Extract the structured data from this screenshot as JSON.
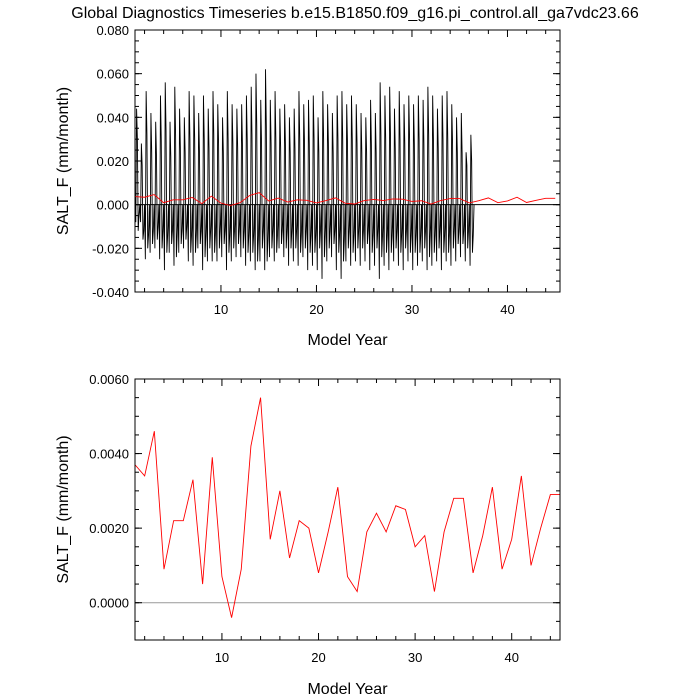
{
  "title": "Global Diagnostics Timeseries b.e15.B1850.f09_g16.pi_control.all_ga7vdc23.66",
  "chart_data": [
    {
      "type": "line",
      "xlabel": "Model Year",
      "ylabel": "SALT_F (mm/month)",
      "xlim": [
        1,
        45.5
      ],
      "ylim": [
        -0.04,
        0.08
      ],
      "xticks": [
        10,
        20,
        30,
        40
      ],
      "xtick_labels": [
        "10",
        "20",
        "30",
        "40"
      ],
      "yticks": [
        -0.04,
        -0.02,
        0,
        0.02,
        0.04,
        0.06,
        0.08
      ],
      "ytick_labels": [
        "-0.040",
        "-0.020",
        "0.000",
        "0.020",
        "0.040",
        "0.060",
        "0.080"
      ],
      "reference_line": 0,
      "series": [
        {
          "color": "#000000",
          "x_start": 1.0,
          "x_step": 0.0833333,
          "values": [
            0.0,
            -0.008,
            0.044,
            0.03,
            -0.012,
            -0.005,
            0.0,
            -0.008,
            0.028,
            0.018,
            -0.016,
            -0.012,
            0.0,
            -0.025,
            0.052,
            0.032,
            -0.02,
            -0.014,
            0.0,
            -0.022,
            0.042,
            0.024,
            -0.018,
            -0.012,
            0.0,
            -0.02,
            0.038,
            0.022,
            -0.016,
            -0.01,
            0.0,
            -0.025,
            0.05,
            0.03,
            -0.02,
            -0.012,
            0.0,
            -0.03,
            0.056,
            0.034,
            -0.022,
            -0.014,
            0.0,
            -0.022,
            0.038,
            0.022,
            -0.018,
            -0.012,
            0.0,
            -0.028,
            0.054,
            0.032,
            -0.024,
            -0.014,
            0.0,
            -0.022,
            0.044,
            0.026,
            -0.018,
            -0.012,
            0.0,
            -0.02,
            0.04,
            0.024,
            -0.016,
            -0.01,
            0.0,
            -0.026,
            0.052,
            0.03,
            -0.022,
            -0.014,
            0.0,
            -0.028,
            0.05,
            0.03,
            -0.022,
            -0.014,
            0.0,
            -0.02,
            0.042,
            0.024,
            -0.018,
            -0.012,
            0.0,
            -0.03,
            0.05,
            0.03,
            -0.024,
            -0.014,
            0.0,
            -0.026,
            0.044,
            0.026,
            -0.02,
            -0.012,
            0.0,
            -0.026,
            0.052,
            0.032,
            -0.022,
            -0.014,
            0.0,
            -0.026,
            0.046,
            0.028,
            -0.02,
            -0.012,
            0.0,
            -0.024,
            0.04,
            0.024,
            -0.018,
            -0.012,
            0.0,
            -0.03,
            0.052,
            0.03,
            -0.022,
            -0.014,
            0.0,
            -0.026,
            0.046,
            0.028,
            -0.02,
            -0.012,
            0.0,
            -0.024,
            0.044,
            0.026,
            -0.018,
            -0.012,
            0.0,
            -0.024,
            0.046,
            0.028,
            -0.02,
            -0.012,
            0.0,
            -0.028,
            0.05,
            0.03,
            -0.022,
            -0.014,
            0.0,
            -0.026,
            0.054,
            0.032,
            -0.022,
            -0.014,
            0.0,
            -0.03,
            0.06,
            0.036,
            -0.026,
            -0.016,
            0.0,
            -0.026,
            0.048,
            0.028,
            -0.02,
            -0.012,
            0.0,
            -0.03,
            0.062,
            0.036,
            -0.026,
            -0.016,
            0.0,
            -0.024,
            0.048,
            0.028,
            -0.02,
            -0.012,
            0.0,
            -0.026,
            0.052,
            0.03,
            -0.022,
            -0.014,
            0.0,
            -0.02,
            0.044,
            0.026,
            -0.018,
            -0.012,
            0.0,
            -0.024,
            0.046,
            0.028,
            -0.02,
            -0.012,
            0.0,
            -0.028,
            0.04,
            0.024,
            -0.02,
            -0.012,
            0.0,
            -0.026,
            0.044,
            0.026,
            -0.02,
            -0.012,
            0.0,
            -0.028,
            0.052,
            0.03,
            -0.022,
            -0.014,
            0.0,
            -0.024,
            0.046,
            0.028,
            -0.02,
            -0.012,
            0.0,
            -0.03,
            0.048,
            0.028,
            -0.022,
            -0.014,
            0.0,
            -0.028,
            0.05,
            0.03,
            -0.022,
            -0.014,
            0.0,
            -0.03,
            0.04,
            0.024,
            -0.02,
            -0.012,
            0.0,
            -0.034,
            0.052,
            0.03,
            -0.024,
            -0.014,
            0.0,
            -0.026,
            0.046,
            0.028,
            -0.02,
            -0.012,
            0.0,
            -0.024,
            0.042,
            0.024,
            -0.018,
            -0.012,
            0.0,
            -0.03,
            0.05,
            0.03,
            -0.022,
            -0.014,
            0.0,
            -0.034,
            0.052,
            0.03,
            -0.026,
            -0.016,
            0.0,
            -0.026,
            0.046,
            0.028,
            -0.02,
            -0.012,
            0.0,
            -0.028,
            0.05,
            0.03,
            -0.022,
            -0.014,
            0.0,
            -0.026,
            0.046,
            0.028,
            -0.02,
            -0.012,
            0.0,
            -0.028,
            0.042,
            0.024,
            -0.02,
            -0.012,
            0.0,
            -0.026,
            0.04,
            0.024,
            -0.018,
            -0.012,
            0.0,
            -0.03,
            0.048,
            0.028,
            -0.022,
            -0.014,
            0.0,
            -0.028,
            0.042,
            0.024,
            -0.02,
            -0.012,
            0.0,
            -0.034,
            0.056,
            0.032,
            -0.024,
            -0.014,
            0.0,
            -0.028,
            0.05,
            0.03,
            -0.022,
            -0.014,
            0.0,
            -0.03,
            0.054,
            0.032,
            -0.022,
            -0.014,
            0.0,
            -0.026,
            0.044,
            0.026,
            -0.02,
            -0.012,
            0.0,
            -0.028,
            0.052,
            0.03,
            -0.022,
            -0.014,
            0.0,
            -0.03,
            0.046,
            0.028,
            -0.02,
            -0.012,
            0.0,
            -0.026,
            0.05,
            0.03,
            -0.022,
            -0.014,
            0.0,
            -0.03,
            0.046,
            0.028,
            -0.022,
            -0.014,
            0.0,
            -0.028,
            0.05,
            0.03,
            -0.022,
            -0.014,
            0.0,
            -0.026,
            0.048,
            0.028,
            -0.02,
            -0.012,
            0.0,
            -0.03,
            0.054,
            0.032,
            -0.024,
            -0.014,
            0.0,
            -0.028,
            0.05,
            0.03,
            -0.022,
            -0.014,
            0.0,
            -0.026,
            0.044,
            0.026,
            -0.02,
            -0.012,
            0.0,
            -0.03,
            0.05,
            0.03,
            -0.022,
            -0.014,
            0.0,
            -0.026,
            0.052,
            0.03,
            -0.022,
            -0.014,
            0.0,
            -0.028,
            0.046,
            0.028,
            -0.02,
            -0.012,
            0.0,
            -0.026,
            0.04,
            0.024,
            -0.018,
            -0.012,
            0.0,
            -0.024,
            0.042,
            0.024,
            -0.018,
            -0.012,
            0.0,
            -0.026,
            0.024,
            0.018,
            -0.02,
            -0.012,
            0.0,
            -0.028,
            0.032,
            0.02,
            -0.022,
            -0.014,
            0.0
          ]
        },
        {
          "color": "#ff0000",
          "x": [
            1,
            2,
            3,
            4,
            5,
            6,
            7,
            8,
            9,
            10,
            11,
            12,
            13,
            14,
            15,
            16,
            17,
            18,
            19,
            20,
            21,
            22,
            23,
            24,
            25,
            26,
            27,
            28,
            29,
            30,
            31,
            32,
            33,
            34,
            35,
            36,
            37,
            38,
            39,
            40,
            41,
            42,
            43,
            44,
            45
          ],
          "values": [
            0.0037,
            0.0034,
            0.0046,
            0.0009,
            0.0022,
            0.0022,
            0.0033,
            0.0005,
            0.0039,
            0.0007,
            -0.0004,
            0.0009,
            0.0042,
            0.0055,
            0.0017,
            0.003,
            0.0012,
            0.0022,
            0.002,
            0.0008,
            0.0019,
            0.0031,
            0.0007,
            0.0003,
            0.0019,
            0.0024,
            0.0019,
            0.0026,
            0.0025,
            0.0015,
            0.0018,
            0.0003,
            0.0019,
            0.0028,
            0.0028,
            0.0008,
            0.0018,
            0.0031,
            0.0009,
            0.0017,
            0.0034,
            0.001,
            0.002,
            0.0029,
            0.0029
          ]
        }
      ]
    },
    {
      "type": "line",
      "xlabel": "Model Year",
      "ylabel": "SALT_F (mm/month)",
      "xlim": [
        1,
        45
      ],
      "ylim": [
        -0.001,
        0.006
      ],
      "xticks": [
        10,
        20,
        30,
        40
      ],
      "xtick_labels": [
        "10",
        "20",
        "30",
        "40"
      ],
      "yticks": [
        0,
        0.002,
        0.004,
        0.006
      ],
      "ytick_labels": [
        "0.0000",
        "0.0020",
        "0.0040",
        "0.0060"
      ],
      "reference_line": 0,
      "series": [
        {
          "color": "#ff0000",
          "x": [
            1,
            2,
            3,
            4,
            5,
            6,
            7,
            8,
            9,
            10,
            11,
            12,
            13,
            14,
            15,
            16,
            17,
            18,
            19,
            20,
            21,
            22,
            23,
            24,
            25,
            26,
            27,
            28,
            29,
            30,
            31,
            32,
            33,
            34,
            35,
            36,
            37,
            38,
            39,
            40,
            41,
            42,
            43,
            44,
            45
          ],
          "values": [
            0.0037,
            0.0034,
            0.0046,
            0.0009,
            0.0022,
            0.0022,
            0.0033,
            0.0005,
            0.0039,
            0.0007,
            -0.0004,
            0.0009,
            0.0042,
            0.0055,
            0.0017,
            0.003,
            0.0012,
            0.0022,
            0.002,
            0.0008,
            0.0019,
            0.0031,
            0.0007,
            0.0003,
            0.0019,
            0.0024,
            0.0019,
            0.0026,
            0.0025,
            0.0015,
            0.0018,
            0.0003,
            0.0019,
            0.0028,
            0.0028,
            0.0008,
            0.0018,
            0.0031,
            0.0009,
            0.0017,
            0.0034,
            0.001,
            0.002,
            0.0029,
            0.0029
          ]
        }
      ]
    }
  ]
}
